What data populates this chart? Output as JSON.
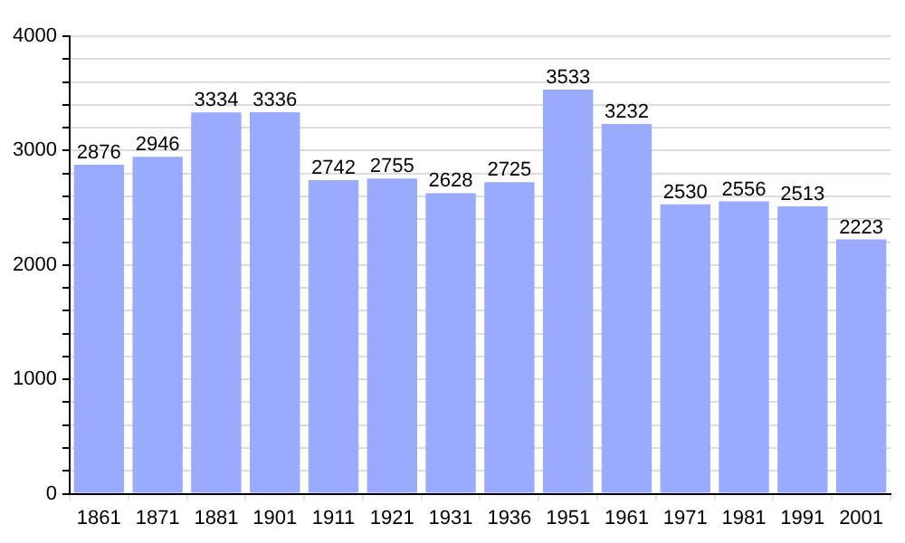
{
  "chart_data": {
    "type": "bar",
    "categories": [
      "1861",
      "1871",
      "1881",
      "1901",
      "1911",
      "1921",
      "1931",
      "1936",
      "1951",
      "1961",
      "1971",
      "1981",
      "1991",
      "2001"
    ],
    "values": [
      2876,
      2946,
      3334,
      3336,
      2742,
      2755,
      2628,
      2725,
      3533,
      3232,
      2530,
      2556,
      2513,
      2223
    ],
    "color": "#99aaff",
    "ylim": [
      0,
      4000
    ],
    "yticks": [
      0,
      {
        "value": 200,
        "label": null
      },
      {
        "value": 400,
        "label": null
      },
      {
        "value": 600,
        "label": null
      },
      {
        "value": 800,
        "label": null
      },
      1000,
      {
        "value": 1200,
        "label": null
      },
      {
        "value": 1400,
        "label": null
      },
      {
        "value": 1600,
        "label": null
      },
      {
        "value": 1800,
        "label": null
      },
      2000,
      {
        "value": 2200,
        "label": null
      },
      {
        "value": 2400,
        "label": null
      },
      {
        "value": 2600,
        "label": null
      },
      {
        "value": 2800,
        "label": null
      },
      3000,
      {
        "value": 3200,
        "label": null
      },
      {
        "value": 3400,
        "label": null
      },
      {
        "value": 3600,
        "label": null
      },
      {
        "value": 3800,
        "label": null
      },
      4000
    ],
    "grid": true,
    "data_labels": true
  }
}
